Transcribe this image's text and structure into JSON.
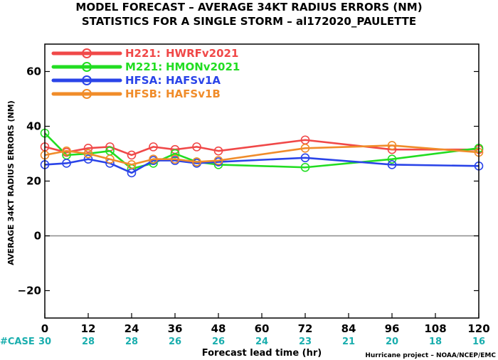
{
  "chart_data": {
    "type": "line",
    "title": "MODEL FORECAST – AVERAGE 34KT RADIUS ERRORS (NM)",
    "subtitle": "STATISTICS FOR A SINGLE STORM – al172020_PAULETTE",
    "xlabel": "Forecast lead time (hr)",
    "ylabel": "AVERAGE 34KT RADIUS ERRORS (NM)",
    "xlim": [
      0,
      120
    ],
    "ylim": [
      -30,
      70
    ],
    "x_ticks": [
      "0",
      "12",
      "24",
      "36",
      "48",
      "60",
      "72",
      "84",
      "96",
      "108",
      "120"
    ],
    "y_ticks": [
      "60",
      "40",
      "20",
      "0",
      "−20"
    ],
    "zero_line": true,
    "legend_position": "top-left",
    "case_label": "#CASE",
    "case_counts": [
      {
        "x": 0,
        "label": "30"
      },
      {
        "x": 12,
        "label": "28"
      },
      {
        "x": 24,
        "label": "28"
      },
      {
        "x": 36,
        "label": "26"
      },
      {
        "x": 48,
        "label": "26"
      },
      {
        "x": 60,
        "label": "24"
      },
      {
        "x": 72,
        "label": "23"
      },
      {
        "x": 84,
        "label": "21"
      },
      {
        "x": 96,
        "label": "20"
      },
      {
        "x": 108,
        "label": "18"
      },
      {
        "x": 120,
        "label": "16"
      }
    ],
    "credit": "Hurricane project – NOAA/NCEP/EMC",
    "series": [
      {
        "code": "H221:",
        "model": "HWRFv2021",
        "color": "#f04848",
        "x": [
          0,
          6,
          12,
          18,
          24,
          30,
          36,
          42,
          48,
          72,
          96,
          120
        ],
        "y": [
          32.5,
          30.5,
          32,
          32.5,
          29.5,
          32.5,
          31.5,
          32.5,
          31,
          35,
          31.5,
          31.5
        ]
      },
      {
        "code": "M221:",
        "model": "HMONv2021",
        "color": "#22dd22",
        "x": [
          0,
          6,
          12,
          18,
          24,
          30,
          36,
          42,
          48,
          72,
          96,
          120
        ],
        "y": [
          37.5,
          29.5,
          30,
          31,
          24.5,
          26.5,
          30,
          27,
          26,
          25,
          28,
          32
        ]
      },
      {
        "code": "HFSA:",
        "model": "HAFSv1A",
        "color": "#2a44e8",
        "x": [
          0,
          6,
          12,
          18,
          24,
          30,
          36,
          42,
          48,
          72,
          96,
          120
        ],
        "y": [
          26,
          26.5,
          28,
          26.5,
          23,
          27.5,
          27.5,
          26.5,
          27,
          28.5,
          26,
          25.5
        ]
      },
      {
        "code": "HFSB:",
        "model": "HAFSv1B",
        "color": "#f08c2a",
        "x": [
          0,
          6,
          12,
          18,
          24,
          30,
          36,
          42,
          48,
          72,
          96,
          120
        ],
        "y": [
          29.5,
          31,
          30,
          28,
          26,
          28,
          28,
          27,
          27.5,
          32,
          33,
          30.5
        ]
      }
    ]
  }
}
